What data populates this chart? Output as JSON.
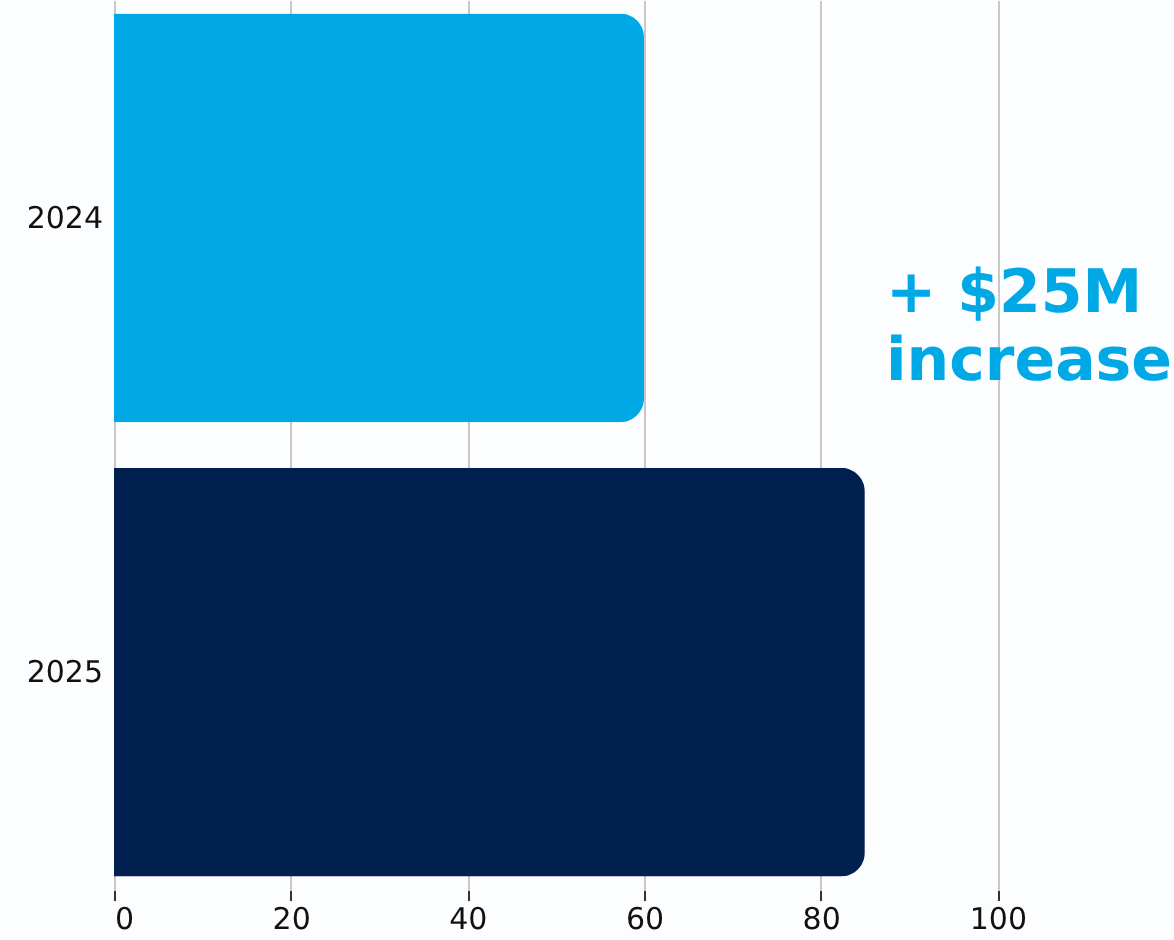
{
  "chart_data": {
    "type": "bar",
    "orientation": "horizontal",
    "categories": [
      "2024",
      "2025"
    ],
    "values": [
      60,
      85
    ],
    "colors": [
      "#00a8e6",
      "#00214f"
    ],
    "xlim": [
      0,
      120
    ],
    "xticks": [
      0,
      20,
      40,
      60,
      80,
      100
    ],
    "grid": "x",
    "annotations": [
      "+ $25M increase"
    ]
  }
}
